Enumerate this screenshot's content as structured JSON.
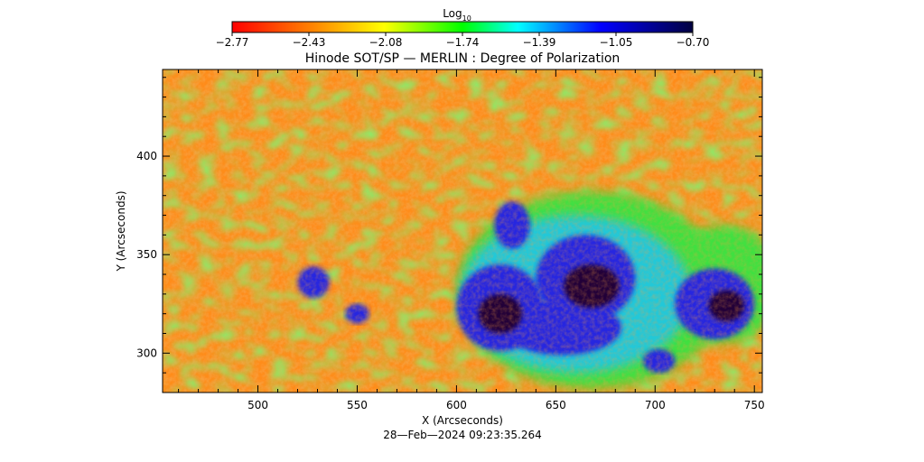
{
  "chart_data": {
    "type": "heatmap",
    "title": "Hinode SOT/SP — MERLIN : Degree of Polarization",
    "xlabel": "X (Arcseconds)",
    "ylabel": "Y (Arcseconds)",
    "date_label": "28—Feb—2024 09:23:35.264",
    "xlim": [
      452,
      754
    ],
    "ylim": [
      280,
      444
    ],
    "x_ticks": [
      500,
      550,
      600,
      650,
      700,
      750
    ],
    "y_ticks": [
      300,
      350,
      400
    ],
    "colorbar": {
      "label_main": "Log",
      "label_sub": "10",
      "range": [
        -2.77,
        -0.7
      ],
      "ticks": [
        "−2.77",
        "−2.43",
        "−2.08",
        "−1.74",
        "−1.39",
        "−1.05",
        "−0.70"
      ],
      "colormap_stops": [
        "#ff0000",
        "#ff8000",
        "#ffff00",
        "#00ff00",
        "#00ffff",
        "#0000ff",
        "#000040"
      ]
    },
    "regions": {
      "background_quiet_sun": {
        "approx_log_value": -2.5,
        "color": "#ff8c1a"
      },
      "network_plage": {
        "approx_log_value": -1.9,
        "color": "#40e040"
      },
      "sunspot_penumbra": {
        "approx_log_value": -1.15,
        "color": "#2828e0"
      },
      "sunspot_umbra": {
        "approx_log_value": -0.8,
        "color": "#200038"
      }
    }
  }
}
